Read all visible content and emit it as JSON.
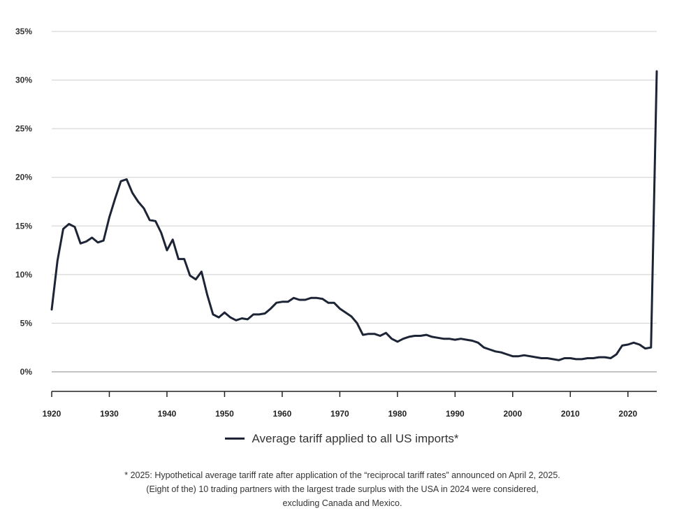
{
  "chart_data": {
    "type": "line",
    "title": "",
    "xlabel": "",
    "ylabel": "",
    "xlim": [
      1920,
      2025
    ],
    "ylim": [
      0,
      35
    ],
    "y_ticks": [
      {
        "value": 0,
        "label": "0%"
      },
      {
        "value": 5,
        "label": "5%"
      },
      {
        "value": 10,
        "label": "10%"
      },
      {
        "value": 15,
        "label": "15%"
      },
      {
        "value": 20,
        "label": "20%"
      },
      {
        "value": 25,
        "label": "25%"
      },
      {
        "value": 30,
        "label": "30%"
      },
      {
        "value": 35,
        "label": "35%"
      }
    ],
    "x_ticks": [
      {
        "value": 1920,
        "label": "1920"
      },
      {
        "value": 1930,
        "label": "1930"
      },
      {
        "value": 1940,
        "label": "1940"
      },
      {
        "value": 1950,
        "label": "1950"
      },
      {
        "value": 1960,
        "label": "1960"
      },
      {
        "value": 1970,
        "label": "1970"
      },
      {
        "value": 1980,
        "label": "1980"
      },
      {
        "value": 1990,
        "label": "1990"
      },
      {
        "value": 2000,
        "label": "2000"
      },
      {
        "value": 2010,
        "label": "2010"
      },
      {
        "value": 2020,
        "label": "2020"
      }
    ],
    "grid": true,
    "series": [
      {
        "name": "Average tariff applied to all US imports*",
        "color": "#1c2436",
        "x": [
          1920,
          1921,
          1922,
          1923,
          1924,
          1925,
          1926,
          1927,
          1928,
          1929,
          1930,
          1931,
          1932,
          1933,
          1934,
          1935,
          1936,
          1937,
          1938,
          1939,
          1940,
          1941,
          1942,
          1943,
          1944,
          1945,
          1946,
          1947,
          1948,
          1949,
          1950,
          1951,
          1952,
          1953,
          1954,
          1955,
          1956,
          1957,
          1958,
          1959,
          1960,
          1961,
          1962,
          1963,
          1964,
          1965,
          1966,
          1967,
          1968,
          1969,
          1970,
          1971,
          1972,
          1973,
          1974,
          1975,
          1976,
          1977,
          1978,
          1979,
          1980,
          1981,
          1982,
          1983,
          1984,
          1985,
          1986,
          1987,
          1988,
          1989,
          1990,
          1991,
          1992,
          1993,
          1994,
          1995,
          1996,
          1997,
          1998,
          1999,
          2000,
          2001,
          2002,
          2003,
          2004,
          2005,
          2006,
          2007,
          2008,
          2009,
          2010,
          2011,
          2012,
          2013,
          2014,
          2015,
          2016,
          2017,
          2018,
          2019,
          2020,
          2021,
          2022,
          2023,
          2024,
          2025
        ],
        "values": [
          6.4,
          11.4,
          14.7,
          15.2,
          14.9,
          13.2,
          13.4,
          13.8,
          13.3,
          13.5,
          15.9,
          17.8,
          19.6,
          19.8,
          18.4,
          17.5,
          16.8,
          15.6,
          15.5,
          14.3,
          12.5,
          13.6,
          11.6,
          11.6,
          9.9,
          9.5,
          10.3,
          7.9,
          5.9,
          5.6,
          6.1,
          5.6,
          5.3,
          5.5,
          5.4,
          5.9,
          5.9,
          6.0,
          6.5,
          7.1,
          7.2,
          7.2,
          7.6,
          7.4,
          7.4,
          7.6,
          7.6,
          7.5,
          7.1,
          7.1,
          6.5,
          6.1,
          5.7,
          5.0,
          3.8,
          3.9,
          3.9,
          3.7,
          4.0,
          3.4,
          3.1,
          3.4,
          3.6,
          3.7,
          3.7,
          3.8,
          3.6,
          3.5,
          3.4,
          3.4,
          3.3,
          3.4,
          3.3,
          3.2,
          3.0,
          2.5,
          2.3,
          2.1,
          2.0,
          1.8,
          1.6,
          1.6,
          1.7,
          1.6,
          1.5,
          1.4,
          1.4,
          1.3,
          1.2,
          1.4,
          1.4,
          1.3,
          1.3,
          1.4,
          1.4,
          1.5,
          1.5,
          1.4,
          1.8,
          2.7,
          2.8,
          3.0,
          2.8,
          2.4,
          2.5,
          30.9
        ]
      }
    ]
  },
  "legend": {
    "label": "Average tariff applied to all US imports*"
  },
  "footnote": {
    "line1": "* 2025: Hypothetical average tariff rate after application of the “reciprocal tariff rates” announced on April 2, 2025.",
    "line2": "(Eight of the) 10 trading partners with the largest trade surplus with the USA in 2024 were considered,",
    "line3": "excluding Canada and Mexico."
  }
}
